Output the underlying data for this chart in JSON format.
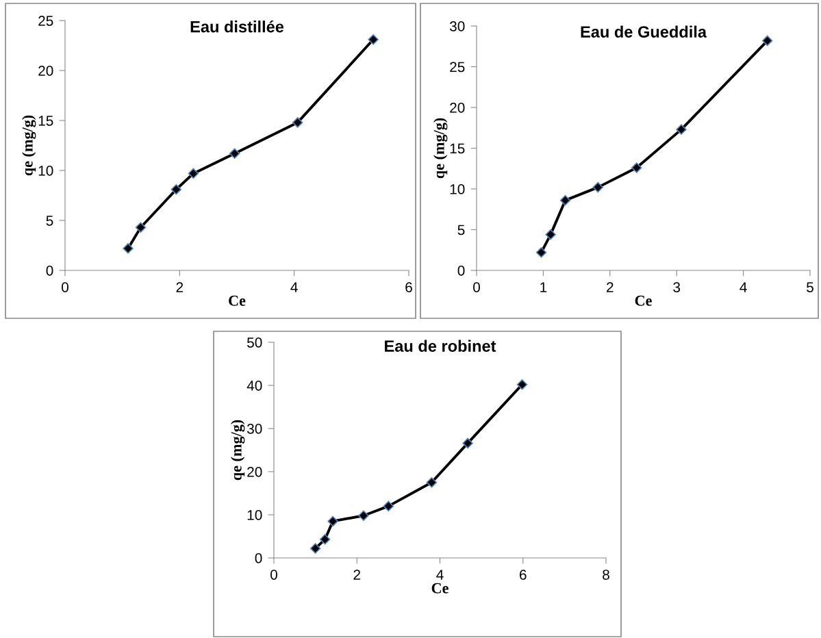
{
  "chart_data": [
    {
      "type": "line",
      "title": "Eau distillée",
      "xlabel": "Ce",
      "ylabel": "qe (mg/g)",
      "xlim": [
        0,
        6
      ],
      "xticks": [
        0,
        2,
        4,
        6
      ],
      "ylim": [
        0,
        25
      ],
      "yticks": [
        0,
        5,
        10,
        15,
        20,
        25
      ],
      "grid": false,
      "legend": false,
      "marker": "diamond",
      "line_style": "solid",
      "series": [
        {
          "color": "#000000",
          "x": [
            1.1,
            1.32,
            1.94,
            2.24,
            2.96,
            4.06,
            5.38
          ],
          "values": [
            2.2,
            4.3,
            8.1,
            9.7,
            11.7,
            14.8,
            23.1
          ]
        }
      ]
    },
    {
      "type": "line",
      "title": "Eau de Gueddila",
      "xlabel": "Ce",
      "ylabel": "qe (mg/g)",
      "xlim": [
        0,
        5
      ],
      "xticks": [
        0,
        1,
        2,
        3,
        4,
        5
      ],
      "ylim": [
        0,
        30
      ],
      "yticks": [
        0,
        5,
        10,
        15,
        20,
        25,
        30
      ],
      "grid": false,
      "legend": false,
      "marker": "diamond",
      "line_style": "solid",
      "series": [
        {
          "color": "#000000",
          "x": [
            0.97,
            1.11,
            1.33,
            1.82,
            2.4,
            3.07,
            4.36
          ],
          "values": [
            2.2,
            4.4,
            8.6,
            10.2,
            12.6,
            17.3,
            28.2
          ]
        }
      ]
    },
    {
      "type": "line",
      "title": "Eau de robinet",
      "xlabel": "Ce",
      "ylabel": "qe (mg/g)",
      "xlim": [
        0,
        8
      ],
      "xticks": [
        0,
        2,
        4,
        6,
        8
      ],
      "ylim": [
        0,
        50
      ],
      "yticks": [
        0,
        10,
        20,
        30,
        40,
        50
      ],
      "grid": false,
      "legend": false,
      "marker": "diamond",
      "line_style": "solid",
      "series": [
        {
          "color": "#000000",
          "x": [
            1.0,
            1.23,
            1.42,
            2.16,
            2.76,
            3.8,
            4.67,
            5.98
          ],
          "values": [
            2.2,
            4.3,
            8.5,
            9.8,
            12.0,
            17.5,
            26.6,
            40.2
          ]
        }
      ]
    }
  ]
}
